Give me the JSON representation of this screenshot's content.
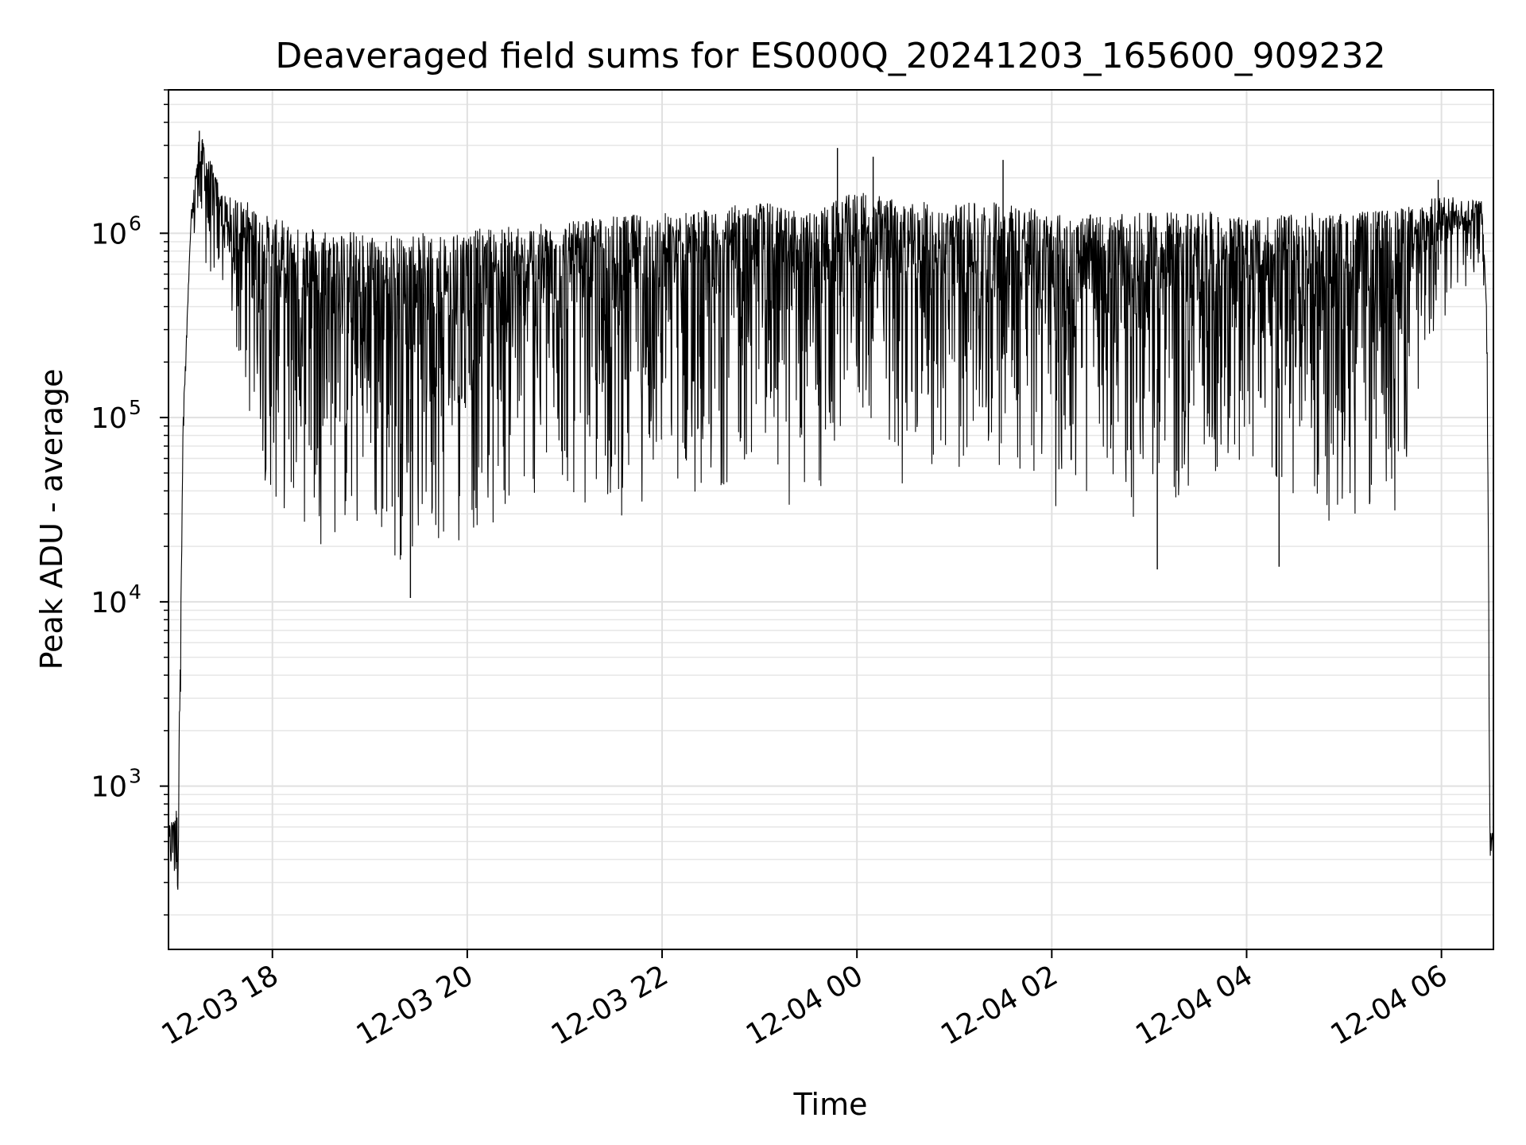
{
  "chart_data": {
    "type": "line",
    "title": "Deaveraged field sums for ES000Q_20241203_165600_909232",
    "xlabel": "Time",
    "ylabel": "Peak ADU - average",
    "yscale": "log",
    "xlim": [
      "2024-12-03 16:56",
      "2024-12-04 06:32"
    ],
    "ylim": [
      130,
      6000000
    ],
    "grid": true,
    "line_color": "#000000",
    "x_ticks": [
      {
        "label": "12-03 18",
        "value": "2024-12-03 18:00"
      },
      {
        "label": "12-03 20",
        "value": "2024-12-03 20:00"
      },
      {
        "label": "12-03 22",
        "value": "2024-12-03 22:00"
      },
      {
        "label": "12-04 00",
        "value": "2024-12-04 00:00"
      },
      {
        "label": "12-04 02",
        "value": "2024-12-04 02:00"
      },
      {
        "label": "12-04 04",
        "value": "2024-12-04 04:00"
      },
      {
        "label": "12-04 06",
        "value": "2024-12-04 06:00"
      }
    ],
    "y_ticks": [
      {
        "base": "10",
        "exp": "3",
        "value": 1000
      },
      {
        "base": "10",
        "exp": "4",
        "value": 10000
      },
      {
        "base": "10",
        "exp": "5",
        "value": 100000
      },
      {
        "base": "10",
        "exp": "6",
        "value": 1000000
      }
    ],
    "series": [
      {
        "envelope": [
          {
            "time": "2024-12-03 16:56",
            "upper": 600,
            "lower": 350
          },
          {
            "time": "2024-12-03 17:02",
            "upper": 800,
            "lower": 210
          },
          {
            "time": "2024-12-03 17:05",
            "upper": 100000,
            "lower": 60000
          },
          {
            "time": "2024-12-03 17:10",
            "upper": 1300000,
            "lower": 900000
          },
          {
            "time": "2024-12-03 17:15",
            "upper": 3600000,
            "lower": 700000
          },
          {
            "time": "2024-12-03 17:30",
            "upper": 1600000,
            "lower": 400000
          },
          {
            "time": "2024-12-03 17:45",
            "upper": 1500000,
            "lower": 90000
          },
          {
            "time": "2024-12-03 18:00",
            "upper": 1200000,
            "lower": 30000
          },
          {
            "time": "2024-12-03 18:30",
            "upper": 1100000,
            "lower": 20000
          },
          {
            "time": "2024-12-03 19:00",
            "upper": 1000000,
            "lower": 15000
          },
          {
            "time": "2024-12-03 19:30",
            "upper": 1000000,
            "lower": 16000
          },
          {
            "time": "2024-12-03 20:00",
            "upper": 1050000,
            "lower": 20000
          },
          {
            "time": "2024-12-03 20:30",
            "upper": 1100000,
            "lower": 30000
          },
          {
            "time": "2024-12-03 21:00",
            "upper": 1150000,
            "lower": 35000
          },
          {
            "time": "2024-12-03 21:30",
            "upper": 1250000,
            "lower": 25000
          },
          {
            "time": "2024-12-03 22:00",
            "upper": 1300000,
            "lower": 40000
          },
          {
            "time": "2024-12-03 22:30",
            "upper": 1350000,
            "lower": 35000
          },
          {
            "time": "2024-12-03 23:00",
            "upper": 1500000,
            "lower": 60000
          },
          {
            "time": "2024-12-03 23:30",
            "upper": 1300000,
            "lower": 20000
          },
          {
            "time": "2024-12-04 00:00",
            "upper": 1700000,
            "lower": 100000
          },
          {
            "time": "2024-12-04 00:30",
            "upper": 1500000,
            "lower": 40000
          },
          {
            "time": "2024-12-04 01:00",
            "upper": 1450000,
            "lower": 45000
          },
          {
            "time": "2024-12-04 01:30",
            "upper": 1500000,
            "lower": 50000
          },
          {
            "time": "2024-12-04 02:00",
            "upper": 1300000,
            "lower": 30000
          },
          {
            "time": "2024-12-04 02:30",
            "upper": 1250000,
            "lower": 30000
          },
          {
            "time": "2024-12-04 03:00",
            "upper": 1300000,
            "lower": 25000
          },
          {
            "time": "2024-12-04 03:30",
            "upper": 1350000,
            "lower": 30000
          },
          {
            "time": "2024-12-04 04:00",
            "upper": 1200000,
            "lower": 40000
          },
          {
            "time": "2024-12-04 04:30",
            "upper": 1300000,
            "lower": 22000
          },
          {
            "time": "2024-12-04 05:00",
            "upper": 1300000,
            "lower": 25000
          },
          {
            "time": "2024-12-04 05:30",
            "upper": 1350000,
            "lower": 25000
          },
          {
            "time": "2024-12-04 06:00",
            "upper": 1600000,
            "lower": 300000
          },
          {
            "time": "2024-12-04 06:25",
            "upper": 1500000,
            "lower": 700000
          },
          {
            "time": "2024-12-04 06:28",
            "upper": 400000,
            "lower": 200000
          },
          {
            "time": "2024-12-04 06:30",
            "upper": 650,
            "lower": 270
          },
          {
            "time": "2024-12-04 06:32",
            "upper": 550,
            "lower": 300
          }
        ],
        "spikes": [
          {
            "time": "2024-12-03 17:15",
            "value": 3600000
          },
          {
            "time": "2024-12-03 19:25",
            "value": 10500
          },
          {
            "time": "2024-12-03 23:48",
            "value": 2900000
          },
          {
            "time": "2024-12-04 00:10",
            "value": 2600000
          },
          {
            "time": "2024-12-04 01:30",
            "value": 2500000
          },
          {
            "time": "2024-12-04 03:05",
            "value": 15000
          },
          {
            "time": "2024-12-04 04:20",
            "value": 15500
          },
          {
            "time": "2024-12-04 05:58",
            "value": 1950000
          }
        ]
      }
    ]
  }
}
